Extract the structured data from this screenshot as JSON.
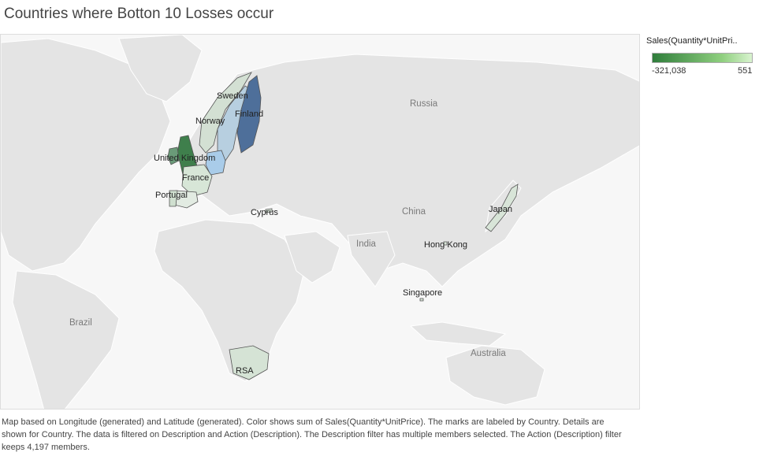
{
  "title": "Countries where Botton 10 Losses occur",
  "legend": {
    "title": "Sales(Quantity*UnitPri..",
    "min": "-321,038",
    "max": "551"
  },
  "map": {
    "background_labels": [
      "Russia",
      "China",
      "India",
      "Brazil",
      "Australia"
    ],
    "countries": [
      {
        "name": "Sweden",
        "label": "Sweden",
        "color": "#b7cfe0"
      },
      {
        "name": "Finland",
        "label": "Finland",
        "color": "#4e6f9a"
      },
      {
        "name": "Norway",
        "label": "Norway",
        "color": "#d3e0d3"
      },
      {
        "name": "United Kingdom",
        "label": "United Kingdom",
        "color": "#3f7f4c"
      },
      {
        "name": "France",
        "label": "France",
        "color": "#d7e6d7"
      },
      {
        "name": "Portugal",
        "label": "Portugal",
        "color": "#cfdfcf"
      },
      {
        "name": "Germany",
        "label": "",
        "color": "#a9cce9"
      },
      {
        "name": "Ireland",
        "label": "",
        "color": "#6a9a78"
      },
      {
        "name": "Spain",
        "label": "",
        "color": "#e2ebe2"
      },
      {
        "name": "Cyprus",
        "label": "Cyprus",
        "color": "#d8e5d8"
      },
      {
        "name": "Japan",
        "label": "Japan",
        "color": "#d8e5d8"
      },
      {
        "name": "Hong Kong",
        "label": "Hong Kong",
        "color": "#d8e5d8"
      },
      {
        "name": "Singapore",
        "label": "Singapore",
        "color": "#d8e5d8"
      },
      {
        "name": "RSA",
        "label": "RSA",
        "color": "#d5e3d5"
      }
    ]
  },
  "caption": "Map based on Longitude (generated) and Latitude (generated).  Color shows sum of Sales(Quantity*UnitPrice).  The marks are labeled by Country.  Details are shown for Country. The data is filtered on Description and Action (Description). The Description filter has multiple members selected. The Action (Description) filter keeps 4,197 members."
}
